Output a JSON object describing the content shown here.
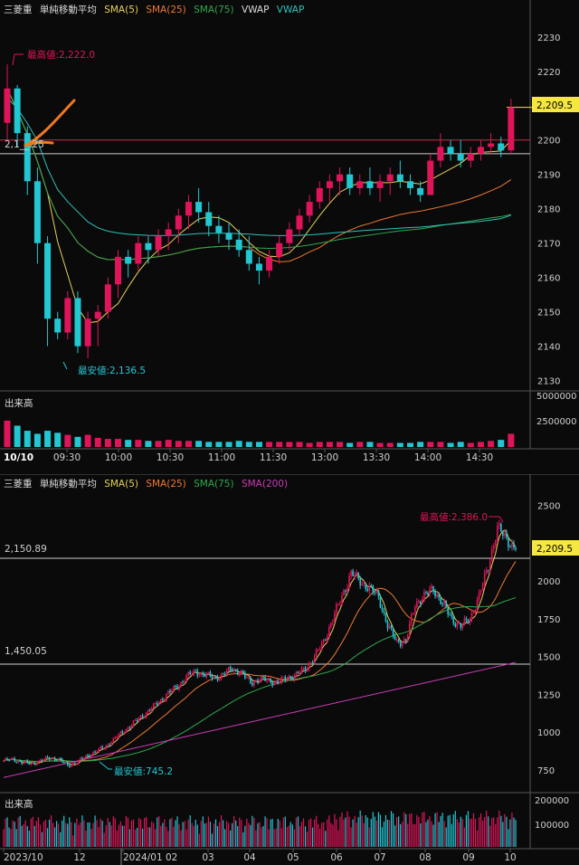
{
  "colors": {
    "background": "#0a0a0a",
    "grid": "#333333",
    "up": "#e0145a",
    "down": "#23c7d2",
    "sma5": "#e6d25a",
    "sma25": "#f07830",
    "sma75": "#2ea84e",
    "vwap": "#2ec2b8",
    "sma200": "#c83cb4",
    "price_label_bg": "#f5e642",
    "annotation_red": "#e0145a",
    "annotation_cyan": "#23c7d2",
    "hand_drawn_mark": "#f07820"
  },
  "intraday": {
    "legend": {
      "symbol": "三菱重",
      "indicator": "単純移動平均",
      "sma5": "SMA(5)",
      "sma25": "SMA(25)",
      "sma75": "SMA(75)",
      "vwap1": "VWAP",
      "vwap2": "VWAP"
    },
    "high_annotation": "最高値:2,222.0",
    "low_annotation": "最安値:2,136.5",
    "ref_line_label": "2,1__.25",
    "current_price_label": "2,209.5",
    "volume_label": "出来高",
    "volume_ticks": [
      "5000000",
      "2500000"
    ],
    "date_label": "10/10"
  },
  "daily": {
    "legend": {
      "symbol": "三菱重",
      "indicator": "単純移動平均",
      "sma5": "SMA(5)",
      "sma25": "SMA(25)",
      "sma75": "SMA(75)",
      "sma200": "SMA(200)"
    },
    "high_annotation": "最高値:2,386.0",
    "low_annotation": "最安値:745.2",
    "ref_line1_label": "2,150.89",
    "ref_line2_label": "1,450.05",
    "current_price_label": "2,209.5",
    "volume_label": "出来高",
    "volume_ticks": [
      "200000",
      "100000"
    ]
  },
  "chart_data": [
    {
      "type": "candlestick",
      "timeframe": "5-minute intraday",
      "y_ticks": [
        2230,
        2220,
        2210,
        2200,
        2190,
        2180,
        2170,
        2160,
        2150,
        2140,
        2130
      ],
      "ylim": [
        2127,
        2236
      ],
      "x_ticks": [
        "10/10",
        "09:30",
        "10:00",
        "10:30",
        "11:00",
        "11:30",
        "13:00",
        "13:30",
        "14:00",
        "14:30"
      ],
      "high": 2222.0,
      "low": 2136.5,
      "last": 2209.5,
      "reference_lines": [
        2200,
        2196
      ],
      "candles": [
        [
          2205,
          2222,
          2200,
          2215
        ],
        [
          2215,
          2216,
          2198,
          2202
        ],
        [
          2202,
          2204,
          2184,
          2188
        ],
        [
          2188,
          2192,
          2164,
          2170
        ],
        [
          2170,
          2172,
          2140,
          2148
        ],
        [
          2148,
          2150,
          2142,
          2144
        ],
        [
          2144,
          2156,
          2142,
          2154
        ],
        [
          2154,
          2156,
          2138,
          2140
        ],
        [
          2140,
          2150,
          2136.5,
          2148
        ],
        [
          2148,
          2152,
          2140,
          2150
        ],
        [
          2150,
          2160,
          2148,
          2158
        ],
        [
          2158,
          2168,
          2154,
          2166
        ],
        [
          2166,
          2168,
          2160,
          2164
        ],
        [
          2164,
          2172,
          2162,
          2170
        ],
        [
          2170,
          2172,
          2164,
          2168
        ],
        [
          2168,
          2174,
          2166,
          2172
        ],
        [
          2172,
          2176,
          2168,
          2174
        ],
        [
          2174,
          2180,
          2170,
          2178
        ],
        [
          2178,
          2184,
          2174,
          2182
        ],
        [
          2182,
          2186,
          2176,
          2179
        ],
        [
          2179,
          2182,
          2172,
          2175
        ],
        [
          2175,
          2178,
          2170,
          2173
        ],
        [
          2173,
          2176,
          2168,
          2171
        ],
        [
          2171,
          2174,
          2166,
          2168
        ],
        [
          2168,
          2172,
          2162,
          2164
        ],
        [
          2164,
          2166,
          2158,
          2162
        ],
        [
          2162,
          2168,
          2160,
          2166
        ],
        [
          2166,
          2172,
          2164,
          2170
        ],
        [
          2170,
          2176,
          2168,
          2174
        ],
        [
          2174,
          2180,
          2172,
          2178
        ],
        [
          2178,
          2184,
          2176,
          2182
        ],
        [
          2182,
          2188,
          2180,
          2186
        ],
        [
          2186,
          2190,
          2182,
          2188
        ],
        [
          2188,
          2192,
          2184,
          2190
        ],
        [
          2190,
          2192,
          2184,
          2186
        ],
        [
          2186,
          2190,
          2184,
          2188
        ],
        [
          2188,
          2192,
          2184,
          2186
        ],
        [
          2186,
          2190,
          2182,
          2188
        ],
        [
          2188,
          2192,
          2184,
          2190
        ],
        [
          2190,
          2194,
          2186,
          2188
        ],
        [
          2188,
          2190,
          2184,
          2186
        ],
        [
          2186,
          2188,
          2182,
          2184
        ],
        [
          2184,
          2196,
          2184,
          2194
        ],
        [
          2194,
          2202,
          2192,
          2198
        ],
        [
          2198,
          2200,
          2194,
          2196
        ],
        [
          2196,
          2200,
          2192,
          2194
        ],
        [
          2194,
          2198,
          2192,
          2196
        ],
        [
          2196,
          2200,
          2194,
          2198
        ],
        [
          2198,
          2202,
          2196,
          2199
        ],
        [
          2199,
          2201,
          2195,
          2197
        ],
        [
          2197,
          2212,
          2196,
          2209.5
        ]
      ],
      "volumes": [
        2.6,
        2.1,
        1.6,
        1.3,
        1.6,
        1.4,
        1.2,
        1.0,
        1.2,
        0.9,
        0.8,
        0.8,
        0.7,
        0.7,
        0.6,
        0.6,
        0.7,
        0.6,
        0.6,
        0.6,
        0.5,
        0.5,
        0.5,
        0.6,
        0.5,
        0.5,
        0.5,
        0.5,
        0.5,
        0.5,
        0.4,
        0.5,
        0.5,
        0.5,
        0.4,
        0.5,
        0.5,
        0.4,
        0.4,
        0.4,
        0.4,
        0.5,
        0.5,
        0.5,
        0.4,
        0.5,
        0.4,
        0.5,
        0.6,
        0.7,
        1.3
      ],
      "volume_unit": "million shares"
    },
    {
      "type": "candlestick",
      "timeframe": "daily",
      "y_ticks": [
        2500,
        2250,
        2000,
        1750,
        1500,
        1250,
        1000,
        750
      ],
      "ylim": [
        600,
        2600
      ],
      "x_ticks": [
        "2023/10",
        "12",
        "2024/01 02",
        "03",
        "04",
        "05",
        "06",
        "07",
        "08",
        "09",
        "10"
      ],
      "high": 2386.0,
      "low": 745.2,
      "last": 2209.5,
      "reference_lines": [
        2150.89,
        1450.05
      ],
      "close_path": [
        [
          0,
          810
        ],
        [
          5,
          820
        ],
        [
          10,
          800
        ],
        [
          15,
          790
        ],
        [
          20,
          810
        ],
        [
          25,
          830
        ],
        [
          30,
          820
        ],
        [
          35,
          780
        ],
        [
          40,
          800
        ],
        [
          45,
          840
        ],
        [
          50,
          870
        ],
        [
          55,
          900
        ],
        [
          60,
          950
        ],
        [
          65,
          1000
        ],
        [
          70,
          1050
        ],
        [
          75,
          1100
        ],
        [
          80,
          1150
        ],
        [
          85,
          1200
        ],
        [
          90,
          1260
        ],
        [
          95,
          1300
        ],
        [
          100,
          1370
        ],
        [
          105,
          1400
        ],
        [
          110,
          1380
        ],
        [
          115,
          1360
        ],
        [
          120,
          1380
        ],
        [
          125,
          1420
        ],
        [
          130,
          1390
        ],
        [
          135,
          1330
        ],
        [
          140,
          1350
        ],
        [
          145,
          1340
        ],
        [
          150,
          1330
        ],
        [
          155,
          1360
        ],
        [
          160,
          1380
        ],
        [
          165,
          1420
        ],
        [
          170,
          1500
        ],
        [
          175,
          1600
        ],
        [
          180,
          1750
        ],
        [
          185,
          1900
        ],
        [
          190,
          2050
        ],
        [
          195,
          2000
        ],
        [
          200,
          1950
        ],
        [
          205,
          1900
        ],
        [
          210,
          1700
        ],
        [
          215,
          1600
        ],
        [
          220,
          1600
        ],
        [
          225,
          1850
        ],
        [
          230,
          1900
        ],
        [
          235,
          1950
        ],
        [
          240,
          1850
        ],
        [
          245,
          1750
        ],
        [
          250,
          1700
        ],
        [
          255,
          1750
        ],
        [
          260,
          1900
        ],
        [
          265,
          2100
        ],
        [
          270,
          2350
        ],
        [
          275,
          2280
        ],
        [
          280,
          2209.5
        ]
      ],
      "volume_unit": "hundred shares"
    }
  ]
}
